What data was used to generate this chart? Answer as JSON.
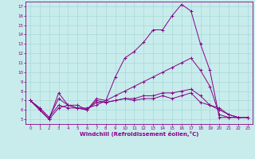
{
  "xlabel": "Windchill (Refroidissement éolien,°C)",
  "background_color": "#c8ecec",
  "grid_color": "#a8d8d8",
  "line_color": "#880088",
  "xlim": [
    -0.5,
    23.5
  ],
  "ylim": [
    4.5,
    17.5
  ],
  "yticks": [
    5,
    6,
    7,
    8,
    9,
    10,
    11,
    12,
    13,
    14,
    15,
    16,
    17
  ],
  "xticks": [
    0,
    1,
    2,
    3,
    4,
    5,
    6,
    7,
    8,
    9,
    10,
    11,
    12,
    13,
    14,
    15,
    16,
    17,
    18,
    19,
    20,
    21,
    22,
    23
  ],
  "lines": [
    [
      7.0,
      6.0,
      5.0,
      7.8,
      6.5,
      6.5,
      6.0,
      7.2,
      7.0,
      9.5,
      11.5,
      12.2,
      13.2,
      14.5,
      14.5,
      16.0,
      17.2,
      16.5,
      13.0,
      10.2,
      5.2,
      5.2,
      5.2,
      5.2
    ],
    [
      7.0,
      6.0,
      5.0,
      6.2,
      6.5,
      6.2,
      6.2,
      6.5,
      7.0,
      7.5,
      8.0,
      8.5,
      9.0,
      9.5,
      10.0,
      10.5,
      11.0,
      11.5,
      10.2,
      8.5,
      5.5,
      5.2,
      5.2,
      5.2
    ],
    [
      7.0,
      6.2,
      5.2,
      6.5,
      6.2,
      6.2,
      6.0,
      6.8,
      6.8,
      7.0,
      7.2,
      7.2,
      7.5,
      7.5,
      7.8,
      7.8,
      8.0,
      8.2,
      7.5,
      6.5,
      6.2,
      5.5,
      5.2,
      5.2
    ],
    [
      7.0,
      6.2,
      5.2,
      7.2,
      6.5,
      6.2,
      6.0,
      7.0,
      6.8,
      7.0,
      7.2,
      7.0,
      7.2,
      7.2,
      7.5,
      7.2,
      7.5,
      7.8,
      6.8,
      6.5,
      6.0,
      5.5,
      5.2,
      5.2
    ]
  ]
}
